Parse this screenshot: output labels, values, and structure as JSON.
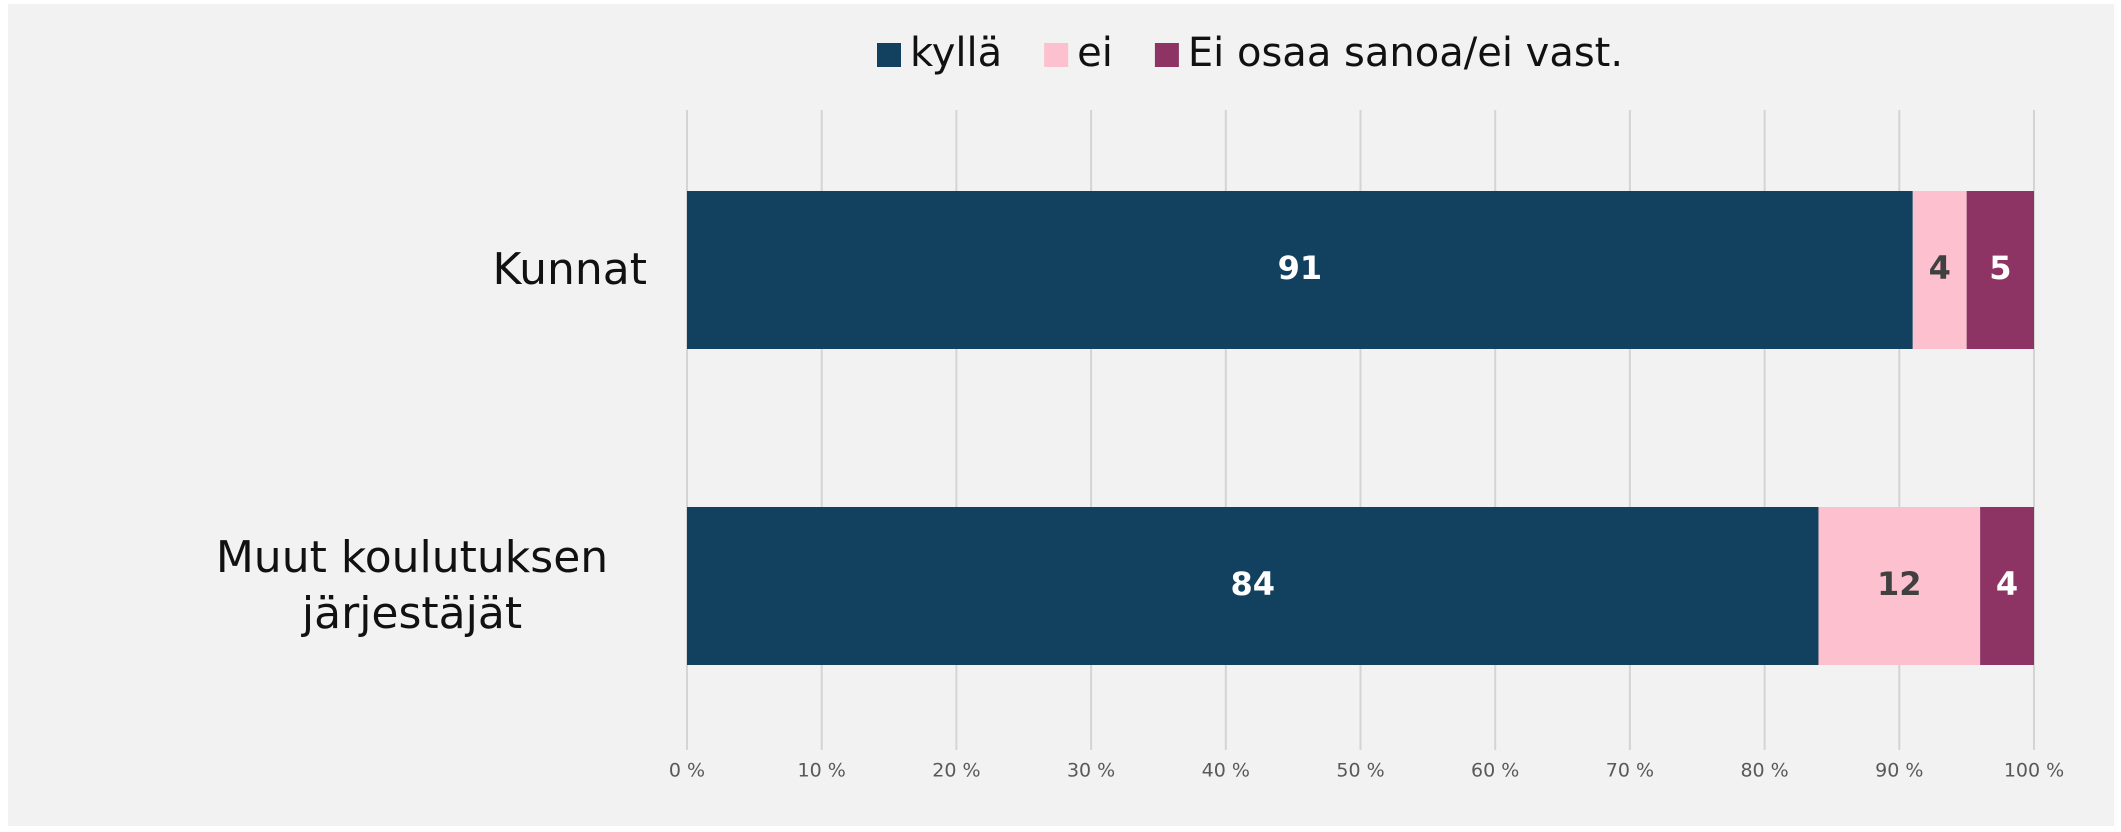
{
  "chart_data": {
    "type": "stacked-barh",
    "categories": [
      "Kunnat",
      "Muut koulutuksen järjestäjät"
    ],
    "series": [
      {
        "name": "kyllä",
        "color": "#12405f",
        "label_color": "#ffffff",
        "values": [
          91,
          84
        ]
      },
      {
        "name": "ei",
        "color": "#fcc0cf",
        "label_color": "#404040",
        "values": [
          4,
          12
        ]
      },
      {
        "name": "Ei osaa sanoa/ei vast.",
        "color": "#8d3465",
        "label_color": "#ffffff",
        "values": [
          5,
          4
        ]
      }
    ],
    "xlim": [
      0,
      100
    ],
    "xticks": [
      {
        "value": 0,
        "label": "0 %"
      },
      {
        "value": 10,
        "label": "10 %"
      },
      {
        "value": 20,
        "label": "20 %"
      },
      {
        "value": 30,
        "label": "30 %"
      },
      {
        "value": 40,
        "label": "40 %"
      },
      {
        "value": 50,
        "label": "50 %"
      },
      {
        "value": 60,
        "label": "60 %"
      },
      {
        "value": 70,
        "label": "70 %"
      },
      {
        "value": 80,
        "label": "80 %"
      },
      {
        "value": 90,
        "label": "90 %"
      },
      {
        "value": 100,
        "label": "100 %"
      }
    ],
    "grid": true,
    "legend": "top"
  }
}
